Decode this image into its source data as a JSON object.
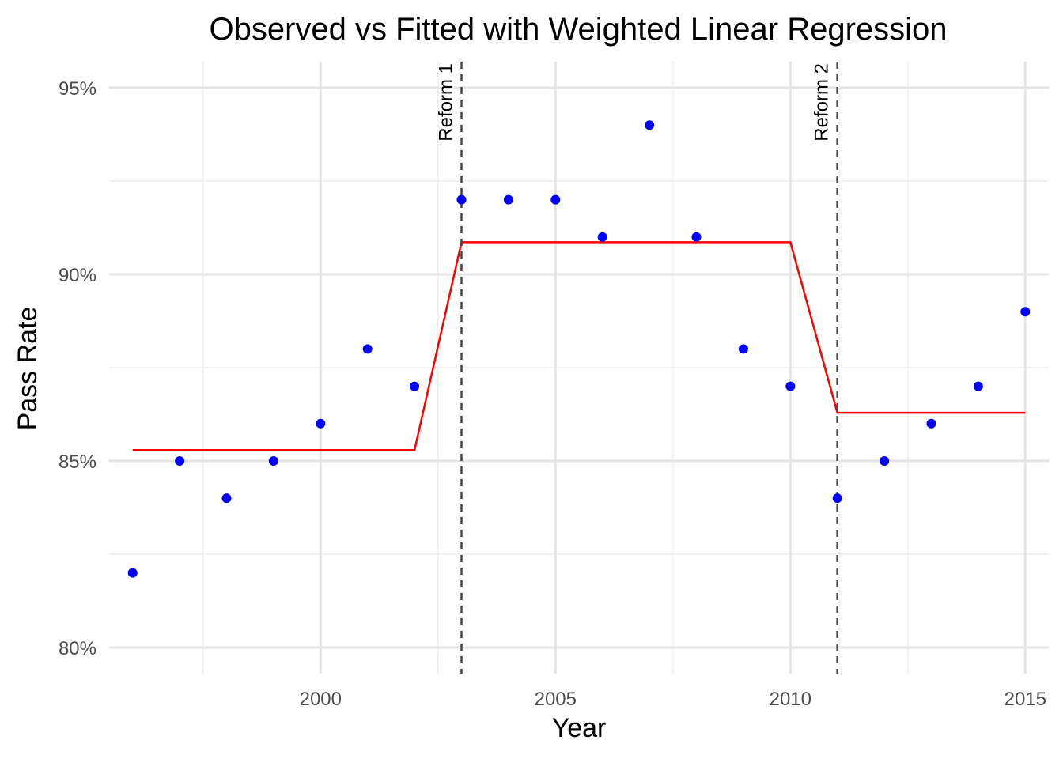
{
  "chart_data": {
    "type": "scatter",
    "title": "Observed vs Fitted with Weighted Linear Regression",
    "xlabel": "Year",
    "ylabel": "Pass Rate",
    "xlim": [
      1995.5,
      2015.5
    ],
    "ylim": [
      79.3,
      95.7
    ],
    "x_ticks": [
      2000,
      2005,
      2010,
      2015
    ],
    "x_tick_labels": [
      "2000",
      "2005",
      "2010",
      "2015"
    ],
    "y_ticks": [
      80,
      85,
      90,
      95
    ],
    "y_tick_labels": [
      "80%",
      "85%",
      "90%",
      "95%"
    ],
    "grid": true,
    "colors": {
      "observed": "#0000ff",
      "fitted": "#ff0000",
      "reference": "#444444"
    },
    "series": [
      {
        "type": "scatter",
        "x": [
          1996,
          1997,
          1998,
          1999,
          2000,
          2001,
          2002,
          2003,
          2004,
          2005,
          2006,
          2007,
          2008,
          2009,
          2010,
          2011,
          2012,
          2013,
          2014,
          2015
        ],
        "y": [
          82,
          85,
          84,
          85,
          86,
          88,
          87,
          92,
          92,
          92,
          91,
          94,
          91,
          88,
          87,
          84,
          85,
          86,
          87,
          89
        ]
      },
      {
        "type": "line",
        "x": [
          1996,
          1997,
          1998,
          1999,
          2000,
          2001,
          2002,
          2003,
          2004,
          2005,
          2006,
          2007,
          2008,
          2009,
          2010,
          2011,
          2012,
          2013,
          2014,
          2015
        ],
        "y": [
          85.29,
          85.29,
          85.29,
          85.29,
          85.29,
          85.29,
          85.29,
          90.86,
          90.86,
          90.86,
          90.86,
          90.86,
          90.86,
          90.86,
          90.86,
          86.29,
          86.29,
          86.29,
          86.29,
          86.29
        ]
      }
    ],
    "annotations": [
      {
        "x": 2003,
        "label": "Reform 1"
      },
      {
        "x": 2011,
        "label": "Reform 2"
      }
    ]
  }
}
